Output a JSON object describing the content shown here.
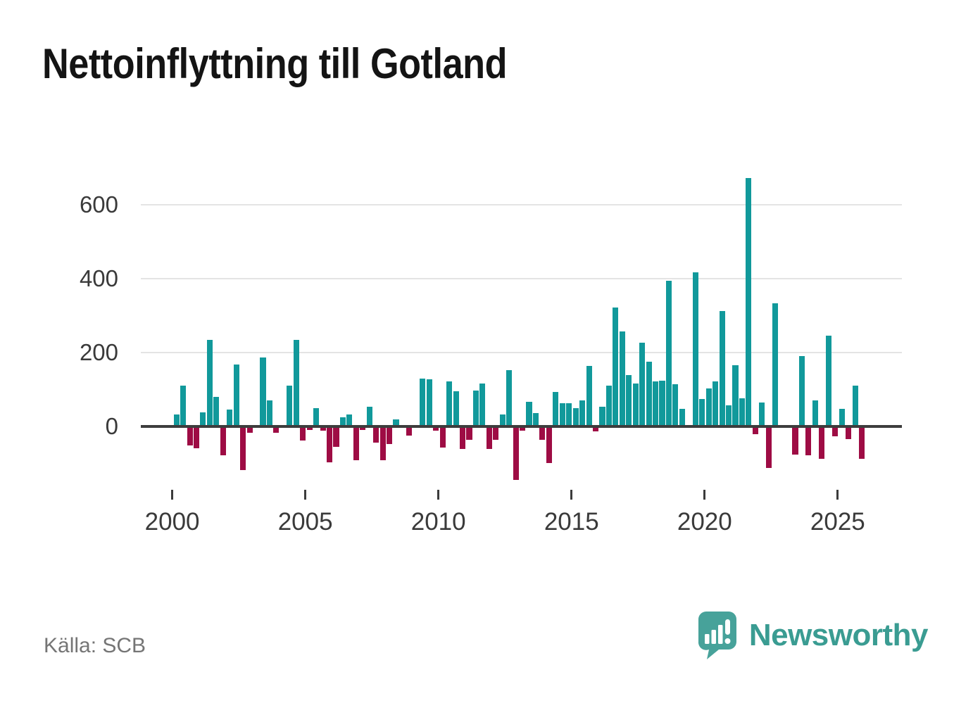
{
  "title": "Nettoinflyttning till Gotland",
  "source": "Källa: SCB",
  "branding": {
    "logo_text": "Newsworthy",
    "logo_icon": "newsworthy-speech-bubble-barchart-icon",
    "logo_color": "#47a29a",
    "logo_text_color": "#3a9c92"
  },
  "colors": {
    "positive_bar": "#11999b",
    "negative_bar": "#9e0c44",
    "gridline": "#e4e4e4",
    "baseline": "#3d3d3d",
    "axis_text": "#3a3a3a",
    "title_text": "#141414",
    "source_text": "#757575",
    "background": "#ffffff"
  },
  "chart_data": {
    "type": "bar",
    "title": "Nettoinflyttning till Gotland",
    "grid": "horizontal",
    "legend": "none",
    "positive_color": "#11999b",
    "negative_color": "#9e0c44",
    "yticks": [
      0,
      200,
      400,
      600
    ],
    "ylim": [
      -200,
      700
    ],
    "xticks": [
      "2000",
      "2005",
      "2010",
      "2015",
      "2020",
      "2025"
    ],
    "categories": [
      "2000-Q1",
      "2000-Q2",
      "2000-Q3",
      "2000-Q4",
      "2001-Q1",
      "2001-Q2",
      "2001-Q3",
      "2001-Q4",
      "2002-Q1",
      "2002-Q2",
      "2002-Q3",
      "2002-Q4",
      "2003-Q1",
      "2003-Q2",
      "2003-Q3",
      "2003-Q4",
      "2004-Q1",
      "2004-Q2",
      "2004-Q3",
      "2004-Q4",
      "2005-Q1",
      "2005-Q2",
      "2005-Q3",
      "2005-Q4",
      "2006-Q1",
      "2006-Q2",
      "2006-Q3",
      "2006-Q4",
      "2007-Q1",
      "2007-Q2",
      "2007-Q3",
      "2007-Q4",
      "2008-Q1",
      "2008-Q2",
      "2008-Q3",
      "2008-Q4",
      "2009-Q1",
      "2009-Q2",
      "2009-Q3",
      "2009-Q4",
      "2010-Q1",
      "2010-Q2",
      "2010-Q3",
      "2010-Q4",
      "2011-Q1",
      "2011-Q2",
      "2011-Q3",
      "2011-Q4",
      "2012-Q1",
      "2012-Q2",
      "2012-Q3",
      "2012-Q4",
      "2013-Q1",
      "2013-Q2",
      "2013-Q3",
      "2013-Q4",
      "2014-Q1",
      "2014-Q2",
      "2014-Q3",
      "2014-Q4",
      "2015-Q1",
      "2015-Q2",
      "2015-Q3",
      "2015-Q4",
      "2016-Q1",
      "2016-Q2",
      "2016-Q3",
      "2016-Q4",
      "2017-Q1",
      "2017-Q2",
      "2017-Q3",
      "2017-Q4",
      "2018-Q1",
      "2018-Q2",
      "2018-Q3",
      "2018-Q4",
      "2019-Q1",
      "2019-Q2",
      "2019-Q3",
      "2019-Q4",
      "2020-Q1",
      "2020-Q2",
      "2020-Q3",
      "2020-Q4",
      "2021-Q1",
      "2021-Q2",
      "2021-Q3",
      "2021-Q4",
      "2022-Q1",
      "2022-Q2",
      "2022-Q3",
      "2022-Q4",
      "2023-Q1",
      "2023-Q2",
      "2023-Q3",
      "2023-Q4",
      "2024-Q1",
      "2024-Q2",
      "2024-Q3",
      "2024-Q4",
      "2025-Q1",
      "2025-Q2",
      "2025-Q3",
      "2025-Q4"
    ],
    "values": [
      31,
      110,
      -53,
      -61,
      37,
      234,
      79,
      -80,
      45,
      168,
      -120,
      -19,
      0,
      187,
      69,
      -18,
      0,
      110,
      234,
      -40,
      -11,
      48,
      -13,
      -98,
      -56,
      24,
      31,
      -93,
      -11,
      53,
      -44,
      -92,
      -49,
      18,
      0,
      -25,
      0,
      128,
      127,
      -13,
      -58,
      121,
      94,
      -62,
      -37,
      97,
      115,
      -62,
      -38,
      31,
      152,
      -147,
      -12,
      65,
      35,
      -37,
      -100,
      92,
      62,
      62,
      48,
      69,
      163,
      -15,
      53,
      110,
      321,
      256,
      138,
      115,
      226,
      175,
      122,
      124,
      394,
      114,
      47,
      0,
      418,
      74,
      103,
      121,
      312,
      56,
      166,
      75,
      673,
      -22,
      64,
      -113,
      333,
      0,
      0,
      -78,
      190,
      -80,
      70,
      -89,
      245,
      -27,
      47,
      -35,
      110,
      -89
    ]
  }
}
